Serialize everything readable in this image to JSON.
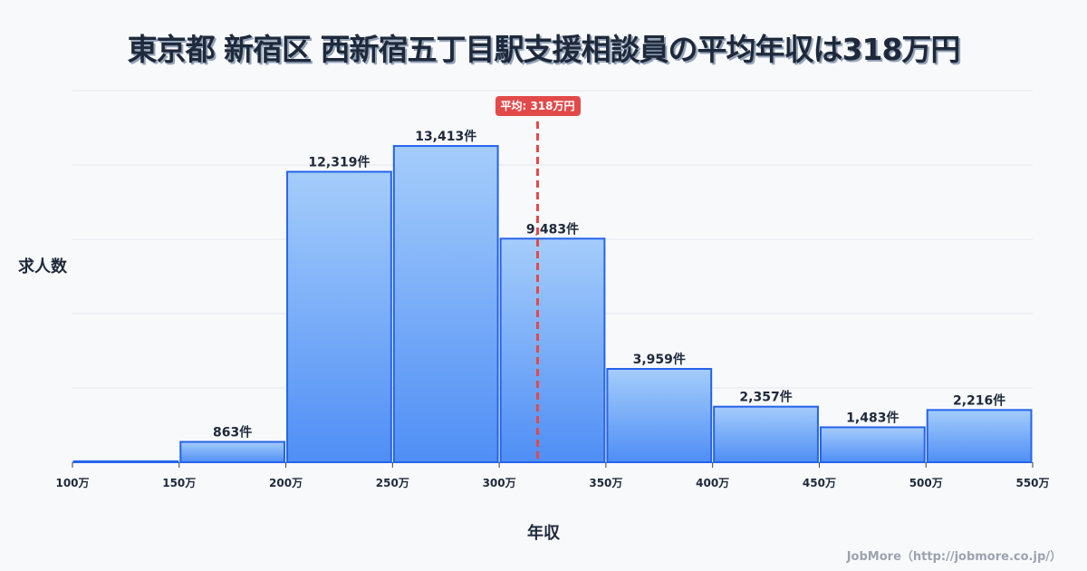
{
  "title": "東京都 新宿区 西新宿五丁目駅支援相談員の平均年収は318万円",
  "axes": {
    "ylabel": "求人数",
    "xlabel": "年収"
  },
  "mean": {
    "value": 318,
    "label": "平均: 318万円",
    "color": "#e24a4a"
  },
  "credit": "JobMore（http://jobmore.co.jp/）",
  "colors": {
    "bar_top": "#a5cdfb",
    "bar_bottom": "#4f8ef5",
    "bar_border": "#2563eb",
    "grid": "#e2e6ee",
    "text": "#1e293b"
  },
  "chart_data": {
    "type": "bar",
    "title": "東京都 新宿区 西新宿五丁目駅支援相談員の平均年収は318万円",
    "xlabel": "年収",
    "ylabel": "求人数",
    "x_ticks": [
      "100万",
      "150万",
      "200万",
      "250万",
      "300万",
      "350万",
      "400万",
      "450万",
      "500万",
      "550万"
    ],
    "bins": [
      [
        100,
        150
      ],
      [
        150,
        200
      ],
      [
        200,
        250
      ],
      [
        250,
        300
      ],
      [
        300,
        350
      ],
      [
        350,
        400
      ],
      [
        400,
        450
      ],
      [
        450,
        500
      ],
      [
        500,
        550
      ]
    ],
    "categories": [
      "100-150万",
      "150-200万",
      "200-250万",
      "250-300万",
      "300-350万",
      "350-400万",
      "400-450万",
      "450-500万",
      "500-550万"
    ],
    "values": [
      0,
      863,
      12319,
      13413,
      9483,
      3959,
      2357,
      1483,
      2216
    ],
    "value_labels": [
      "",
      "863件",
      "12,319件",
      "13,413件",
      "9,483件",
      "3,959件",
      "2,357件",
      "1,483件",
      "2,216件"
    ],
    "ylim": [
      0,
      15760
    ],
    "xlim": [
      100,
      550
    ],
    "grid": true,
    "annotations": [
      {
        "type": "vline",
        "x": 318,
        "label": "平均: 318万円"
      }
    ]
  }
}
